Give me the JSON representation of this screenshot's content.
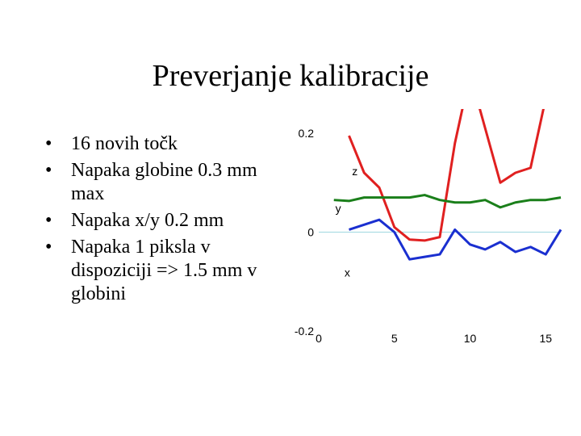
{
  "slide": {
    "title": "Preverjanje kalibracije",
    "bullets": [
      "16 novih točk",
      "Napaka globine 0.3 mm max",
      "Napaka x/y 0.2 mm",
      "Napaka 1 piksla v dispoziciji => 1.5 mm v globini"
    ]
  },
  "chart_data": {
    "type": "line",
    "title": "",
    "xlabel": "",
    "ylabel": "",
    "xlim": [
      0,
      16
    ],
    "ylim": [
      -0.2,
      0.2
    ],
    "x_ticks": [
      "0",
      "5",
      "10",
      "15"
    ],
    "y_ticks": [
      "0.2",
      "0",
      "-0.2"
    ],
    "zero_line": true,
    "series": [
      {
        "name": "z",
        "color": "#e02020",
        "x": [
          2,
          3,
          4,
          5,
          6,
          7,
          8,
          9,
          10,
          11,
          12,
          13,
          14,
          15,
          16
        ],
        "y": [
          0.195,
          0.12,
          0.09,
          0.01,
          -0.015,
          -0.017,
          -0.01,
          0.18,
          0.32,
          0.21,
          0.1,
          0.12,
          0.13,
          0.27,
          0.31
        ]
      },
      {
        "name": "y",
        "color": "#1a7f1a",
        "x": [
          1,
          2,
          3,
          4,
          5,
          6,
          7,
          8,
          9,
          10,
          11,
          12,
          13,
          14,
          15,
          16
        ],
        "y": [
          0.065,
          0.063,
          0.07,
          0.07,
          0.07,
          0.07,
          0.075,
          0.065,
          0.06,
          0.06,
          0.065,
          0.05,
          0.06,
          0.065,
          0.065,
          0.07
        ]
      },
      {
        "name": "x",
        "color": "#1a2fd0",
        "x": [
          2,
          3,
          4,
          5,
          6,
          7,
          8,
          9,
          10,
          11,
          12,
          13,
          14,
          15,
          16
        ],
        "y": [
          0.005,
          0.015,
          0.025,
          0.0,
          -0.055,
          -0.05,
          -0.045,
          0.005,
          -0.025,
          -0.035,
          -0.02,
          -0.04,
          -0.03,
          -0.045,
          0.005
        ]
      }
    ],
    "series_labels": [
      {
        "text": "z",
        "x": 2.2,
        "y": 0.115
      },
      {
        "text": "y",
        "x": 1.1,
        "y": 0.04
      },
      {
        "text": "x",
        "x": 1.7,
        "y": -0.09
      }
    ]
  }
}
